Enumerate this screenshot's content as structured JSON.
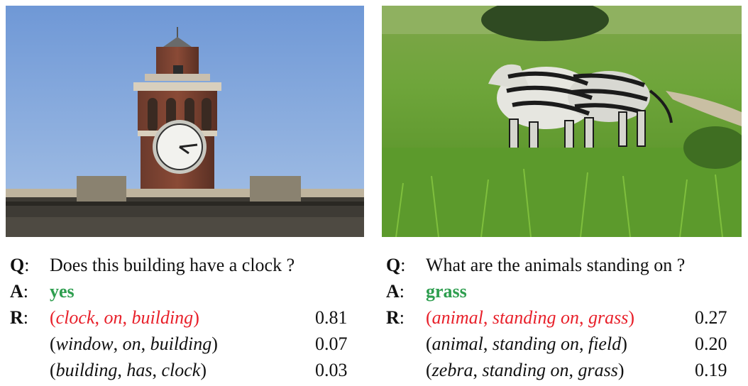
{
  "examples": [
    {
      "image": "clock tower on building against blue sky",
      "q_label": "Q",
      "a_label": "A",
      "r_label": "R",
      "question": "Does this building have a clock ?",
      "answer": "yes",
      "relations": [
        {
          "subject": "clock",
          "predicate": "on",
          "object": "building",
          "score": "0.81",
          "highlight": true
        },
        {
          "subject": "window",
          "predicate": "on",
          "object": "building",
          "score": "0.07",
          "highlight": false
        },
        {
          "subject": "building",
          "predicate": "has",
          "object": "clock",
          "score": "0.03",
          "highlight": false
        }
      ]
    },
    {
      "image": "zebras standing in green grass",
      "q_label": "Q",
      "a_label": "A",
      "r_label": "R",
      "question": "What are the animals standing on ?",
      "answer": "grass",
      "relations": [
        {
          "subject": "animal",
          "predicate": "standing on",
          "object": "grass",
          "score": "0.27",
          "highlight": true
        },
        {
          "subject": "animal",
          "predicate": "standing on",
          "object": "field",
          "score": "0.20",
          "highlight": false
        },
        {
          "subject": "zebra",
          "predicate": "standing on",
          "object": "grass",
          "score": "0.19",
          "highlight": false
        }
      ]
    }
  ],
  "colors": {
    "answer": "#2e9e4f",
    "highlight": "#e8202a",
    "sky": "#7fa6dc",
    "grass": "#5f9a2e"
  }
}
